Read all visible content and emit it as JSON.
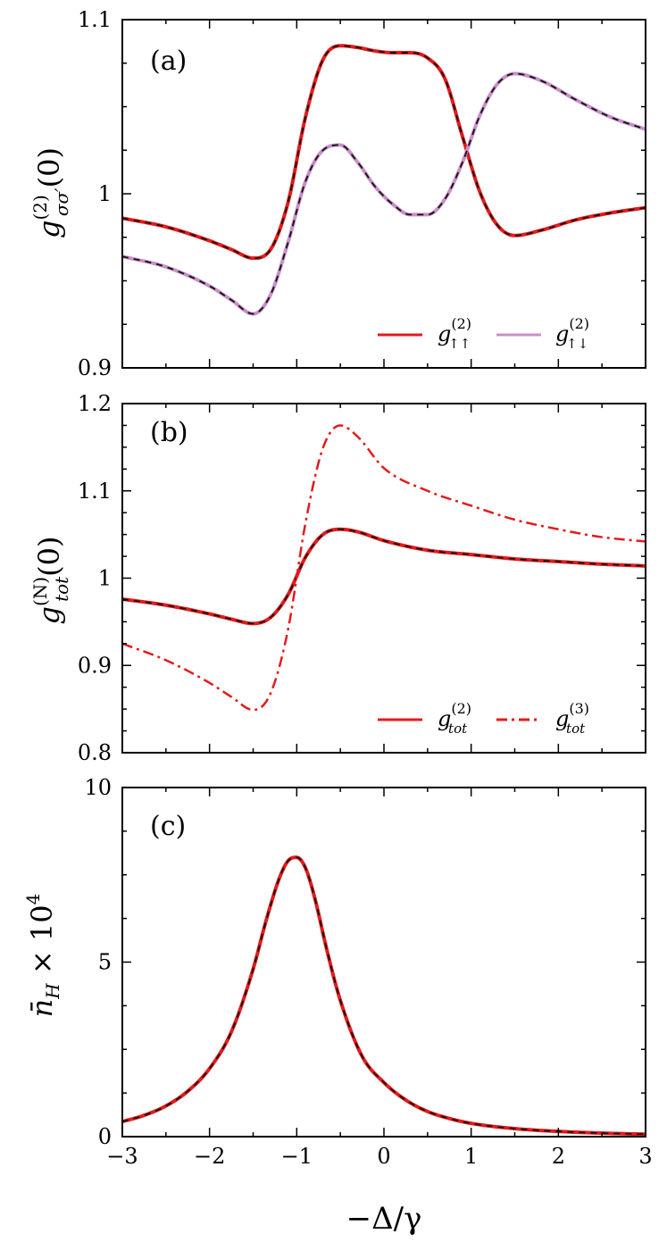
{
  "x_axis_label": "−Δ/γ",
  "chart_data": [
    {
      "type": "line",
      "panel": "(a)",
      "ylabel": "g_{σσ′}^{(2)}(0)",
      "xlim": [
        -3,
        3
      ],
      "ylim": [
        0.9,
        1.1
      ],
      "xticks": [
        -3,
        -2,
        -1,
        0,
        1,
        2,
        3
      ],
      "xtick_labels": [
        "−3",
        "−2",
        "−1",
        "0",
        "1",
        "2",
        "3"
      ],
      "yticks": [
        0.9,
        1.0,
        1.1
      ],
      "ytick_labels": [
        "0.9",
        "1",
        "1.1"
      ],
      "legend_position": "bottom-right",
      "legend": [
        {
          "label": "g↑↑(2)",
          "color": "#e41a1c",
          "style": "solid"
        },
        {
          "label": "g↑↓(2)",
          "color": "#c98fc9",
          "style": "solid"
        }
      ],
      "series": [
        {
          "name": "g↑↑(2)",
          "color": "#e41a1c",
          "overlay": "black-dashed",
          "x": [
            -3,
            -2.5,
            -2,
            -1.75,
            -1.5,
            -1.3,
            -1.1,
            -0.9,
            -0.7,
            -0.5,
            -0.3,
            -0.1,
            0.1,
            0.3,
            0.5,
            0.7,
            0.9,
            1.1,
            1.3,
            1.5,
            1.8,
            2.2,
            2.6,
            3
          ],
          "y": [
            0.986,
            0.981,
            0.973,
            0.968,
            0.963,
            0.968,
            0.995,
            1.044,
            1.077,
            1.085,
            1.084,
            1.082,
            1.081,
            1.081,
            1.078,
            1.066,
            1.033,
            1.001,
            0.982,
            0.976,
            0.979,
            0.985,
            0.989,
            0.992
          ]
        },
        {
          "name": "g↑↓(2)",
          "color": "#c98fc9",
          "overlay": "black-dashed",
          "x": [
            -3,
            -2.5,
            -2,
            -1.75,
            -1.5,
            -1.3,
            -1.1,
            -0.9,
            -0.7,
            -0.5,
            -0.3,
            -0.1,
            0.1,
            0.3,
            0.5,
            0.7,
            0.9,
            1.1,
            1.3,
            1.5,
            1.8,
            2.2,
            2.6,
            3
          ],
          "y": [
            0.964,
            0.958,
            0.947,
            0.939,
            0.931,
            0.942,
            0.972,
            1.007,
            1.025,
            1.028,
            1.018,
            1.004,
            0.994,
            0.988,
            0.988,
            0.997,
            1.018,
            1.045,
            1.063,
            1.069,
            1.065,
            1.054,
            1.044,
            1.037
          ]
        }
      ]
    },
    {
      "type": "line",
      "panel": "(b)",
      "ylabel": "g_{tot}^{(N)}(0)",
      "xlim": [
        -3,
        3
      ],
      "ylim": [
        0.8,
        1.2
      ],
      "xticks": [
        -3,
        -2,
        -1,
        0,
        1,
        2,
        3
      ],
      "xtick_labels": [
        "−3",
        "−2",
        "−1",
        "0",
        "1",
        "2",
        "3"
      ],
      "yticks": [
        0.8,
        0.9,
        1.0,
        1.1,
        1.2
      ],
      "ytick_labels": [
        "0.8",
        "0.9",
        "1",
        "1.1",
        "1.2"
      ],
      "legend_position": "bottom-right",
      "legend": [
        {
          "label": "gtot(2)",
          "color": "#e41a1c",
          "style": "solid"
        },
        {
          "label": "gtot(3)",
          "color": "#e41a1c",
          "style": "dashdot"
        }
      ],
      "series": [
        {
          "name": "gtot(2)",
          "color": "#e41a1c",
          "overlay": "black-dashed",
          "x": [
            -3,
            -2.5,
            -2,
            -1.75,
            -1.5,
            -1.3,
            -1.1,
            -0.9,
            -0.7,
            -0.5,
            -0.3,
            0,
            0.5,
            1,
            1.5,
            2,
            2.5,
            3
          ],
          "y": [
            0.976,
            0.969,
            0.959,
            0.953,
            0.948,
            0.955,
            0.981,
            1.024,
            1.05,
            1.056,
            1.053,
            1.043,
            1.032,
            1.027,
            1.022,
            1.019,
            1.016,
            1.014
          ]
        },
        {
          "name": "gtot(3)",
          "color": "#e41a1c",
          "style": "dashdot",
          "x": [
            -3,
            -2.5,
            -2,
            -1.75,
            -1.5,
            -1.3,
            -1.1,
            -0.9,
            -0.7,
            -0.5,
            -0.3,
            0,
            0.5,
            1,
            1.5,
            2,
            2.5,
            3
          ],
          "y": [
            0.925,
            0.906,
            0.88,
            0.864,
            0.849,
            0.868,
            0.941,
            1.063,
            1.149,
            1.175,
            1.162,
            1.126,
            1.1,
            1.083,
            1.067,
            1.056,
            1.047,
            1.042
          ]
        }
      ]
    },
    {
      "type": "line",
      "panel": "(c)",
      "ylabel": "n̄_H × 10^4",
      "xlim": [
        -3,
        3
      ],
      "ylim": [
        0,
        10
      ],
      "xticks": [
        -3,
        -2,
        -1,
        0,
        1,
        2,
        3
      ],
      "xtick_labels": [
        "−3",
        "−2",
        "−1",
        "0",
        "1",
        "2",
        "3"
      ],
      "yticks": [
        0,
        5,
        10
      ],
      "ytick_labels": [
        "0",
        "5",
        "10"
      ],
      "series": [
        {
          "color": "#e41a1c",
          "overlay": "black-dashed",
          "x": [
            -3,
            -2.75,
            -2.5,
            -2.25,
            -2,
            -1.75,
            -1.5,
            -1.35,
            -1.2,
            -1.1,
            -1,
            -0.9,
            -0.8,
            -0.65,
            -0.5,
            -0.25,
            0,
            0.25,
            0.5,
            0.75,
            1,
            1.5,
            2,
            2.5,
            3
          ],
          "y": [
            0.43,
            0.61,
            0.88,
            1.3,
            1.95,
            3.0,
            4.8,
            6.2,
            7.4,
            7.9,
            8.0,
            7.7,
            6.9,
            5.3,
            3.9,
            2.3,
            1.55,
            1.05,
            0.72,
            0.52,
            0.38,
            0.23,
            0.15,
            0.1,
            0.07
          ]
        }
      ]
    }
  ]
}
